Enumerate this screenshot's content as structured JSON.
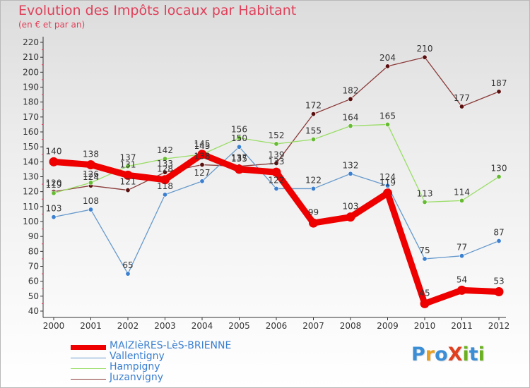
{
  "header": {
    "title": "Evolution des Impôts locaux par Habitant",
    "subtitle": "(en € et par an)"
  },
  "logo": {
    "text": "ProXiti",
    "letter_colors": [
      "#3a8ed6",
      "#e8a020",
      "#3a8ed6",
      "#e04020",
      "#6ab020",
      "#3a8ed6",
      "#6ab020"
    ]
  },
  "chart_data": {
    "type": "line",
    "title": "Evolution des Impôts locaux par Habitant",
    "subtitle": "(en € et par an)",
    "xlabel": "",
    "ylabel": "",
    "categories": [
      "2000",
      "2001",
      "2002",
      "2003",
      "2004",
      "2005",
      "2006",
      "2007",
      "2008",
      "2009",
      "2010",
      "2011",
      "2012"
    ],
    "yticks": [
      40,
      50,
      60,
      70,
      80,
      90,
      100,
      110,
      120,
      130,
      140,
      150,
      160,
      170,
      180,
      190,
      200,
      210,
      220
    ],
    "ylim": [
      40,
      220
    ],
    "grid": false,
    "legend_position": "bottom-left",
    "series": [
      {
        "name": "Juzanvigny",
        "color": "#8b3a3a",
        "point_color": "#5a0f0f",
        "values": [
          120,
          124,
          121,
          133,
          138,
          137,
          139,
          172,
          182,
          204,
          210,
          177,
          187
        ]
      },
      {
        "name": "Hampigny",
        "color": "#99dd66",
        "point_color": "#66bb33",
        "values": [
          119,
          126,
          137,
          142,
          145,
          156,
          152,
          155,
          164,
          165,
          113,
          114,
          130
        ]
      },
      {
        "name": "Vallentigny",
        "color": "#6699cc",
        "point_color": "#3a7fd0",
        "values": [
          103,
          108,
          65,
          118,
          127,
          150,
          122,
          122,
          132,
          124,
          75,
          77,
          87
        ]
      },
      {
        "name": "MAIZIèRES-LèS-BRIENNE",
        "color": "#ee0000",
        "point_color": "#ee0000",
        "values": [
          140,
          138,
          131,
          128,
          145,
          135,
          133,
          99,
          103,
          119,
          45,
          54,
          53
        ]
      }
    ]
  },
  "legend": [
    {
      "label": "MAIZIèRES-LèS-BRIENNE",
      "color": "#ee0000",
      "thickness": 7
    },
    {
      "label": "Vallentigny",
      "color": "#6699cc",
      "thickness": 1
    },
    {
      "label": "Hampigny",
      "color": "#99dd66",
      "thickness": 1
    },
    {
      "label": "Juzanvigny",
      "color": "#8b3a3a",
      "thickness": 1
    }
  ]
}
